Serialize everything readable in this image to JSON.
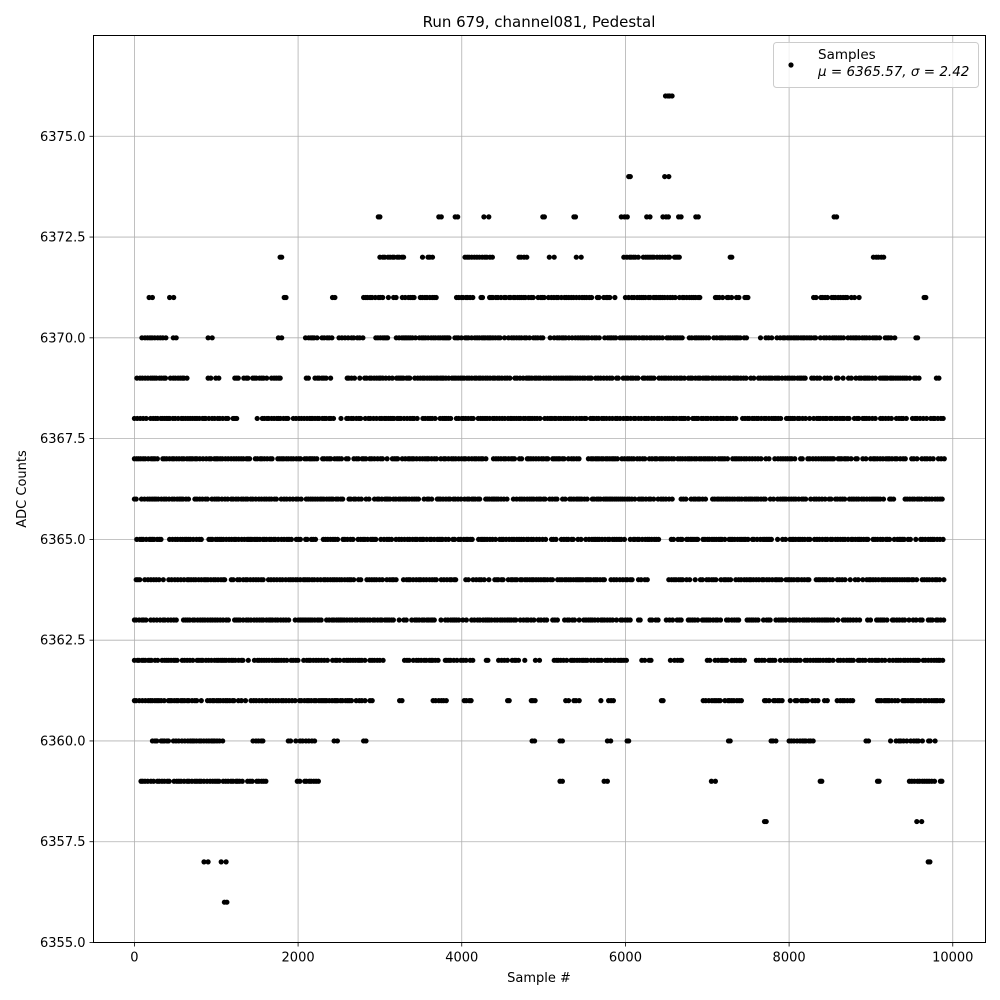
{
  "chart_data": {
    "type": "scatter",
    "title": "Run 679, channel081, Pedestal",
    "xlabel": "Sample #",
    "ylabel": "ADC Counts",
    "xlim": [
      -500,
      10400
    ],
    "ylim": [
      6355.0,
      6377.5
    ],
    "xticks": [
      0,
      2000,
      4000,
      6000,
      8000,
      10000
    ],
    "xtick_labels": [
      "0",
      "2000",
      "4000",
      "6000",
      "8000",
      "10000"
    ],
    "yticks": [
      6355.0,
      6357.5,
      6360.0,
      6362.5,
      6365.0,
      6367.5,
      6370.0,
      6372.5,
      6375.0
    ],
    "ytick_labels": [
      "6355.0",
      "6357.5",
      "6360.0",
      "6362.5",
      "6365.0",
      "6367.5",
      "6370.0",
      "6372.5",
      "6375.0"
    ],
    "grid": true,
    "legend_position": "top-right",
    "marker_color": "#000000",
    "series": [
      {
        "name": "Samples",
        "stats_label": "μ = 6365.57, σ = 2.42",
        "x_range": [
          0,
          9900
        ],
        "level_bands": [
          {
            "y": 6356,
            "x_ranges": [
              [
                1100,
                1130
              ]
            ]
          },
          {
            "y": 6357,
            "x_ranges": [
              [
                850,
                900
              ],
              [
                1060,
                1120
              ],
              [
                9700,
                9720
              ]
            ]
          },
          {
            "y": 6358,
            "x_ranges": [
              [
                7700,
                7720
              ],
              [
                9560,
                9620
              ]
            ]
          },
          {
            "y": 6359,
            "x_ranges": [
              [
                80,
                1660
              ],
              [
                1990,
                2300
              ],
              [
                5200,
                5230
              ],
              [
                5740,
                5780
              ],
              [
                7050,
                7100
              ],
              [
                8380,
                8400
              ],
              [
                9080,
                9100
              ],
              [
                9470,
                9870
              ]
            ]
          },
          {
            "y": 6360,
            "x_ranges": [
              [
                220,
                1150
              ],
              [
                1430,
                1600
              ],
              [
                1880,
                2230
              ],
              [
                2440,
                2480
              ],
              [
                2800,
                2830
              ],
              [
                4860,
                4890
              ],
              [
                5200,
                5230
              ],
              [
                5780,
                5820
              ],
              [
                6020,
                6040
              ],
              [
                7260,
                7280
              ],
              [
                7750,
                7870
              ],
              [
                8000,
                8300
              ],
              [
                8940,
                8970
              ],
              [
                9240,
                9800
              ]
            ]
          },
          {
            "y": 6361,
            "x_ranges": [
              [
                0,
                2930
              ],
              [
                3240,
                3270
              ],
              [
                3650,
                3820
              ],
              [
                4030,
                4180
              ],
              [
                4560,
                4580
              ],
              [
                4850,
                4920
              ],
              [
                5270,
                5440
              ],
              [
                5700,
                5880
              ],
              [
                6440,
                6460
              ],
              [
                6950,
                7460
              ],
              [
                7700,
                8480
              ],
              [
                8560,
                8800
              ],
              [
                9080,
                9900
              ]
            ]
          },
          {
            "y": 6362,
            "x_ranges": [
              [
                0,
                3060
              ],
              [
                3300,
                4180
              ],
              [
                4300,
                4320
              ],
              [
                4450,
                4780
              ],
              [
                4900,
                4950
              ],
              [
                5130,
                6020
              ],
              [
                6200,
                6330
              ],
              [
                6550,
                6700
              ],
              [
                7000,
                7460
              ],
              [
                7600,
                9900
              ]
            ]
          },
          {
            "y": 6363,
            "x_ranges": [
              [
                0,
                4080
              ],
              [
                4120,
                6060
              ],
              [
                6160,
                6180
              ],
              [
                6300,
                6400
              ],
              [
                6500,
                9900
              ]
            ]
          },
          {
            "y": 6364,
            "x_ranges": [
              [
                0,
                6100
              ],
              [
                6160,
                6330
              ],
              [
                6530,
                9900
              ]
            ]
          },
          {
            "y": 6365,
            "x_ranges": [
              [
                0,
                6430
              ],
              [
                6560,
                9900
              ]
            ]
          },
          {
            "y": 6366,
            "x_ranges": [
              [
                0,
                9900
              ]
            ]
          },
          {
            "y": 6367,
            "x_ranges": [
              [
                0,
                9900
              ]
            ]
          },
          {
            "y": 6368,
            "x_ranges": [
              [
                0,
                1250
              ],
              [
                1500,
                9900
              ]
            ]
          },
          {
            "y": 6369,
            "x_ranges": [
              [
                30,
                650
              ],
              [
                900,
                1050
              ],
              [
                1200,
                1800
              ],
              [
                2100,
                2400
              ],
              [
                2600,
                9600
              ],
              [
                9800,
                9830
              ]
            ]
          },
          {
            "y": 6370,
            "x_ranges": [
              [
                70,
                520
              ],
              [
                900,
                950
              ],
              [
                1760,
                1800
              ],
              [
                2090,
                2800
              ],
              [
                2950,
                3100
              ],
              [
                3200,
                7500
              ],
              [
                7650,
                9300
              ],
              [
                9550,
                9570
              ]
            ]
          },
          {
            "y": 6371,
            "x_ranges": [
              [
                180,
                220
              ],
              [
                430,
                480
              ],
              [
                1830,
                1900
              ],
              [
                2420,
                2450
              ],
              [
                2800,
                3700
              ],
              [
                3900,
                5900
              ],
              [
                6000,
                6950
              ],
              [
                7100,
                7500
              ],
              [
                8300,
                8920
              ],
              [
                9650,
                9670
              ]
            ]
          },
          {
            "y": 6372,
            "x_ranges": [
              [
                1780,
                1800
              ],
              [
                3000,
                3300
              ],
              [
                3520,
                3650
              ],
              [
                4040,
                4400
              ],
              [
                4700,
                4800
              ],
              [
                5070,
                5130
              ],
              [
                5400,
                5460
              ],
              [
                5980,
                6680
              ],
              [
                7280,
                7300
              ],
              [
                9030,
                9180
              ]
            ]
          },
          {
            "y": 6373,
            "x_ranges": [
              [
                2980,
                3000
              ],
              [
                3720,
                3750
              ],
              [
                3920,
                3950
              ],
              [
                4270,
                4330
              ],
              [
                4990,
                5010
              ],
              [
                5370,
                5390
              ],
              [
                5950,
                6030
              ],
              [
                6260,
                6300
              ],
              [
                6420,
                6530
              ],
              [
                6650,
                6680
              ],
              [
                6860,
                6890
              ],
              [
                8550,
                8580
              ]
            ]
          },
          {
            "y": 6374,
            "x_ranges": [
              [
                6040,
                6060
              ],
              [
                6480,
                6530
              ]
            ]
          },
          {
            "y": 6376,
            "x_ranges": [
              [
                6490,
                6520
              ],
              [
                6540,
                6570
              ]
            ]
          }
        ]
      }
    ]
  }
}
